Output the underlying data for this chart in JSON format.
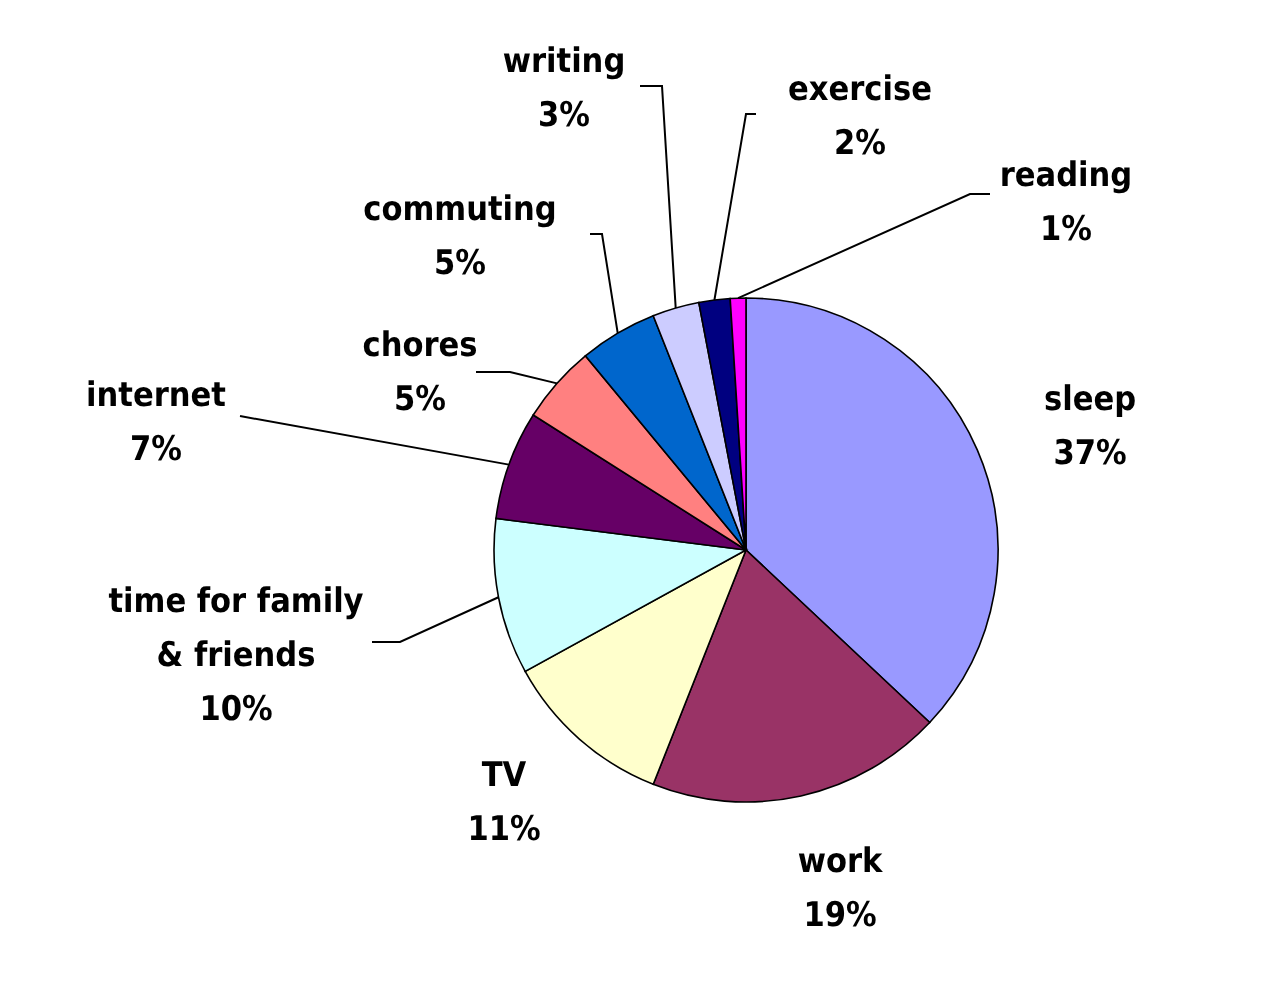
{
  "chart_data": {
    "type": "pie",
    "categories": [
      "sleep",
      "work",
      "TV",
      "time for family & friends",
      "internet",
      "chores",
      "commuting",
      "writing",
      "exercise",
      "reading"
    ],
    "values": [
      37,
      19,
      11,
      10,
      7,
      5,
      5,
      3,
      2,
      1
    ],
    "value_labels": [
      "37%",
      "19%",
      "11%",
      "10%",
      "7%",
      "5%",
      "5%",
      "3%",
      "2%",
      "1%"
    ],
    "colors": [
      "#9999ff",
      "#993366",
      "#ffffcc",
      "#ccffff",
      "#660066",
      "#ff8080",
      "#0066cc",
      "#ccccff",
      "#000080",
      "#ff00ff"
    ]
  }
}
